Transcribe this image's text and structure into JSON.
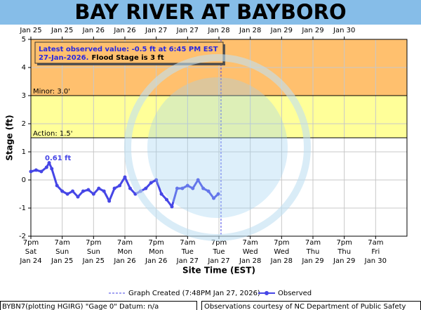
{
  "chart_data": {
    "type": "line",
    "title": "BAY RIVER AT BAYBORO",
    "ylabel": "Stage (ft)",
    "xlabel": "Site Time (EST)",
    "ylim": [
      -2,
      5
    ],
    "yticks": [
      -2,
      -1,
      0,
      1,
      2,
      3,
      4,
      5
    ],
    "grid": true,
    "xlim": [
      "2026-01-24T19:00",
      "2026-01-30T19:00"
    ],
    "xticks": [
      {
        "value": "2026-01-24T19:00",
        "label": [
          "7pm",
          "Sat",
          "Jan 24"
        ]
      },
      {
        "value": "2026-01-25T07:00",
        "label": [
          "7am",
          "Sun",
          "Jan 25"
        ]
      },
      {
        "value": "2026-01-25T19:00",
        "label": [
          "7pm",
          "Sun",
          "Jan 25"
        ]
      },
      {
        "value": "2026-01-26T07:00",
        "label": [
          "7am",
          "Mon",
          "Jan 26"
        ]
      },
      {
        "value": "2026-01-26T19:00",
        "label": [
          "7pm",
          "Mon",
          "Jan 26"
        ]
      },
      {
        "value": "2026-01-27T07:00",
        "label": [
          "7am",
          "Tue",
          "Jan 27"
        ]
      },
      {
        "value": "2026-01-27T19:00",
        "label": [
          "7pm",
          "Tue",
          "Jan 27"
        ]
      },
      {
        "value": "2026-01-28T07:00",
        "label": [
          "7am",
          "Wed",
          "Jan 28"
        ]
      },
      {
        "value": "2026-01-28T19:00",
        "label": [
          "7pm",
          "Wed",
          "Jan 28"
        ]
      },
      {
        "value": "2026-01-29T07:00",
        "label": [
          "7am",
          "Thu",
          "Jan 29"
        ]
      },
      {
        "value": "2026-01-29T19:00",
        "label": [
          "7pm",
          "Thu",
          "Jan 29"
        ]
      },
      {
        "value": "2026-01-30T07:00",
        "label": [
          "7am",
          "Fri",
          "Jan 30"
        ]
      }
    ],
    "x2ticks": [
      {
        "value": "2026-01-24T19:00",
        "label": "Jan 25"
      },
      {
        "value": "2026-01-25T07:00",
        "label": "Jan 25"
      },
      {
        "value": "2026-01-25T19:00",
        "label": "Jan 26"
      },
      {
        "value": "2026-01-26T07:00",
        "label": "Jan 26"
      },
      {
        "value": "2026-01-26T19:00",
        "label": "Jan 27"
      },
      {
        "value": "2026-01-27T07:00",
        "label": "Jan 27"
      },
      {
        "value": "2026-01-27T19:00",
        "label": "Jan 28"
      },
      {
        "value": "2026-01-28T07:00",
        "label": "Jan 28"
      },
      {
        "value": "2026-01-28T19:00",
        "label": "Jan 29"
      },
      {
        "value": "2026-01-29T07:00",
        "label": "Jan 29"
      },
      {
        "value": "2026-01-29T19:00",
        "label": "Jan 30"
      }
    ],
    "flood_categories": [
      {
        "label": "Minor: 3.0'",
        "value": 3,
        "color": "#ffc06e"
      },
      {
        "label": "Action: 1.5'",
        "value": 1.5,
        "color": "#ffff99"
      }
    ],
    "series": [
      {
        "name": "Observed",
        "color": "#4646e6",
        "x": [
          "2026-01-24T19:00",
          "2026-01-24T21:00",
          "2026-01-24T23:00",
          "2026-01-25T01:00",
          "2026-01-25T02:00",
          "2026-01-25T03:00",
          "2026-01-25T05:00",
          "2026-01-25T07:00",
          "2026-01-25T09:00",
          "2026-01-25T11:00",
          "2026-01-25T13:00",
          "2026-01-25T15:00",
          "2026-01-25T17:00",
          "2026-01-25T19:00",
          "2026-01-25T21:00",
          "2026-01-25T23:00",
          "2026-01-26T01:00",
          "2026-01-26T03:00",
          "2026-01-26T05:00",
          "2026-01-26T07:00",
          "2026-01-26T09:00",
          "2026-01-26T11:00",
          "2026-01-26T13:00",
          "2026-01-26T15:00",
          "2026-01-26T17:00",
          "2026-01-26T19:00",
          "2026-01-26T21:00",
          "2026-01-26T23:00",
          "2026-01-27T01:00",
          "2026-01-27T03:00",
          "2026-01-27T05:00",
          "2026-01-27T07:00",
          "2026-01-27T09:00",
          "2026-01-27T11:00",
          "2026-01-27T13:00",
          "2026-01-27T15:00",
          "2026-01-27T17:00",
          "2026-01-27T18:45"
        ],
        "values": [
          0.3,
          0.35,
          0.3,
          0.45,
          0.61,
          0.4,
          -0.2,
          -0.4,
          -0.5,
          -0.4,
          -0.6,
          -0.4,
          -0.35,
          -0.5,
          -0.3,
          -0.4,
          -0.75,
          -0.3,
          -0.2,
          0.1,
          -0.3,
          -0.5,
          -0.4,
          -0.3,
          -0.1,
          0,
          -0.5,
          -0.7,
          -0.95,
          -0.3,
          -0.3,
          -0.2,
          -0.3,
          0,
          -0.3,
          -0.4,
          -0.65,
          -0.5
        ]
      }
    ],
    "peak_label": "0.61 ft",
    "latest": {
      "line1": "Latest observed value: -0.5 ft at 6:45 PM EST",
      "date": "27-Jan-2026.",
      "flood": "Flood Stage is 3 ft"
    },
    "graph_created": {
      "label": "Graph Created (7:48PM Jan 27, 2026)",
      "x": "2026-01-27T19:48"
    },
    "footer_left": "BYBN7(plotting HGIRG) \"Gage 0\" Datum: n/a",
    "footer_right": "Observations courtesy of NC Department of Public Safety"
  }
}
